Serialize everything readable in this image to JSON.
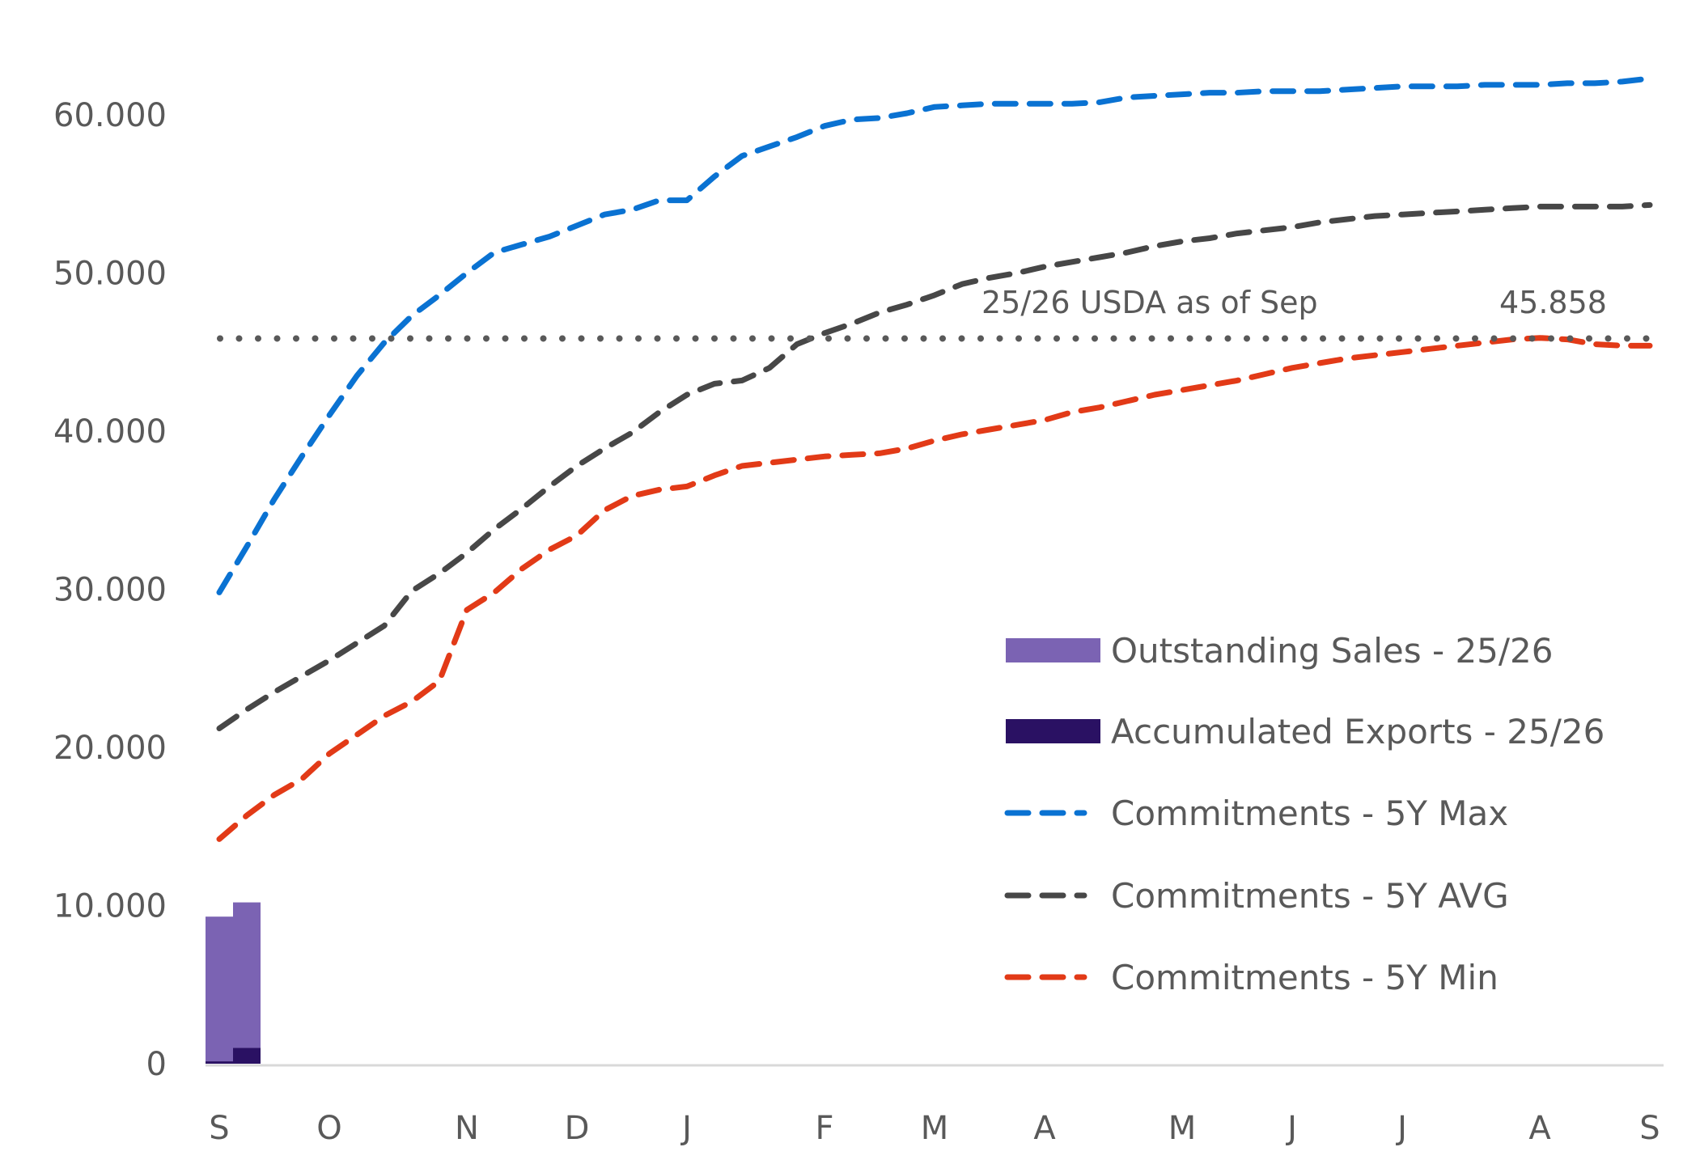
{
  "chart_data": {
    "type": "line",
    "title": "",
    "xlabel": "",
    "ylabel": "",
    "ylim": [
      0,
      60000
    ],
    "y_ticks": [
      "0",
      "10.000",
      "20.000",
      "30.000",
      "40.000",
      "50.000",
      "60.000"
    ],
    "y_tick_values": [
      0,
      10000,
      20000,
      30000,
      40000,
      50000,
      60000
    ],
    "x_ticks": [
      {
        "label": "S",
        "week": 0
      },
      {
        "label": "O",
        "week": 4
      },
      {
        "label": "N",
        "week": 9
      },
      {
        "label": "D",
        "week": 13
      },
      {
        "label": "J",
        "week": 17
      },
      {
        "label": "F",
        "week": 22
      },
      {
        "label": "M",
        "week": 26
      },
      {
        "label": "A",
        "week": 30
      },
      {
        "label": "M",
        "week": 35
      },
      {
        "label": "J",
        "week": 39
      },
      {
        "label": "J",
        "week": 43
      },
      {
        "label": "A",
        "week": 48
      },
      {
        "label": "S",
        "week": 52
      }
    ],
    "weeks": 53,
    "grid": false,
    "legend_position": "bottom-right",
    "bars": [
      {
        "name": "Outstanding Sales - 25/26",
        "color": "#7b63b3",
        "values": [
          9150,
          9200
        ]
      },
      {
        "name": "Accumulated Exports - 25/26",
        "color": "#2a1163",
        "values": [
          150,
          1000
        ]
      }
    ],
    "series": [
      {
        "name": "Commitments - 5Y Max",
        "color": "#0a72d2",
        "values": [
          29.8,
          32.7,
          35.7,
          38.4,
          41.0,
          43.5,
          45.6,
          47.3,
          48.6,
          50.0,
          51.3,
          51.8,
          52.3,
          53.0,
          53.7,
          54.0,
          54.6,
          54.6,
          56.1,
          57.4,
          58.0,
          58.6,
          59.3,
          59.7,
          59.8,
          60.1,
          60.5,
          60.6,
          60.7,
          60.7,
          60.7,
          60.7,
          60.8,
          61.1,
          61.2,
          61.3,
          61.4,
          61.4,
          61.5,
          61.5,
          61.5,
          61.6,
          61.7,
          61.8,
          61.8,
          61.8,
          61.9,
          61.9,
          61.9,
          62.0,
          62.0,
          62.1,
          62.3
        ]
      },
      {
        "name": "Commitments - 5Y AVG",
        "color": "#474747",
        "values": [
          21.2,
          22.4,
          23.5,
          24.5,
          25.5,
          26.6,
          27.7,
          29.9,
          31.0,
          32.3,
          33.8,
          35.1,
          36.5,
          37.8,
          38.9,
          39.9,
          41.2,
          42.3,
          43.0,
          43.2,
          44.0,
          45.5,
          46.2,
          46.8,
          47.5,
          48.0,
          48.6,
          49.3,
          49.7,
          50.0,
          50.4,
          50.7,
          51.0,
          51.3,
          51.7,
          52.0,
          52.2,
          52.5,
          52.7,
          52.9,
          53.2,
          53.4,
          53.6,
          53.7,
          53.8,
          53.9,
          54.0,
          54.1,
          54.2,
          54.2,
          54.2,
          54.2,
          54.3
        ]
      },
      {
        "name": "Commitments - 5Y Min",
        "color": "#e23a17",
        "values": [
          14.2,
          15.7,
          17.0,
          18.0,
          19.6,
          20.8,
          22.0,
          22.9,
          24.2,
          28.7,
          29.8,
          31.3,
          32.5,
          33.4,
          35.0,
          35.9,
          36.3,
          36.5,
          37.2,
          37.8,
          38.0,
          38.2,
          38.4,
          38.5,
          38.6,
          38.9,
          39.4,
          39.8,
          40.1,
          40.4,
          40.7,
          41.2,
          41.5,
          41.9,
          42.3,
          42.6,
          42.9,
          43.2,
          43.6,
          44.0,
          44.3,
          44.6,
          44.8,
          45.0,
          45.2,
          45.4,
          45.6,
          45.8,
          45.9,
          45.8,
          45.5,
          45.4,
          45.4
        ]
      }
    ],
    "series_units": "thousands",
    "reference_line": {
      "label": "25/26 USDA as of Sep",
      "value": 45858,
      "value_label": "45.858",
      "color": "#595959"
    }
  }
}
